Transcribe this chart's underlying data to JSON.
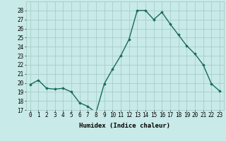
{
  "x": [
    0,
    1,
    2,
    3,
    4,
    5,
    6,
    7,
    8,
    9,
    10,
    11,
    12,
    13,
    14,
    15,
    16,
    17,
    18,
    19,
    20,
    21,
    22,
    23
  ],
  "y": [
    19.8,
    20.3,
    19.4,
    19.3,
    19.4,
    19.0,
    17.8,
    17.4,
    16.7,
    19.9,
    21.5,
    23.0,
    24.8,
    28.0,
    28.0,
    27.0,
    27.8,
    26.5,
    25.3,
    24.1,
    23.2,
    22.0,
    19.9,
    19.1
  ],
  "line_color": "#1a6b5a",
  "marker": "D",
  "marker_size": 1.8,
  "bg_color": "#c8eae8",
  "grid_color": "#a0c8c4",
  "xlabel": "Humidex (Indice chaleur)",
  "ylim": [
    17,
    29
  ],
  "xlim": [
    -0.5,
    23.5
  ],
  "yticks": [
    17,
    18,
    19,
    20,
    21,
    22,
    23,
    24,
    25,
    26,
    27,
    28
  ],
  "xticks": [
    0,
    1,
    2,
    3,
    4,
    5,
    6,
    7,
    8,
    9,
    10,
    11,
    12,
    13,
    14,
    15,
    16,
    17,
    18,
    19,
    20,
    21,
    22,
    23
  ],
  "xlabel_fontsize": 6.5,
  "tick_fontsize": 5.5,
  "linewidth": 1.0
}
